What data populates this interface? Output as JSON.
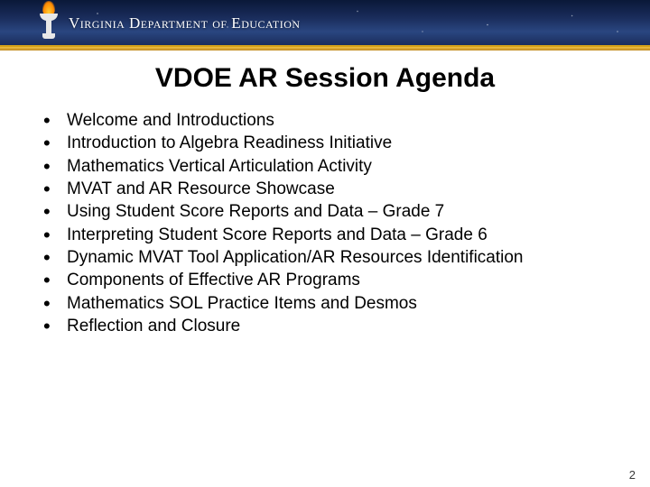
{
  "header": {
    "logo_text": "Virginia Department of Education",
    "bar_gradient": [
      "#0a1838",
      "#1a2d5c",
      "#2a4680"
    ],
    "gold_stripe": [
      "#f0c040",
      "#c08820"
    ],
    "torch_flame_colors": [
      "#ffcc33",
      "#ff8800"
    ],
    "torch_body_color": "#e8e8e8"
  },
  "slide": {
    "title": "VDOE AR Session Agenda",
    "title_fontsize": 30,
    "title_color": "#000000",
    "bullet_fontsize": 19,
    "bullet_color": "#000000",
    "items": [
      "Welcome and Introductions",
      "Introduction to Algebra Readiness Initiative",
      "Mathematics Vertical Articulation Activity",
      "MVAT and AR Resource Showcase",
      "Using Student Score Reports and Data – Grade 7",
      "Interpreting Student Score Reports and Data – Grade 6",
      "Dynamic MVAT Tool Application/AR Resources Identification",
      "Components of Effective AR Programs",
      "Mathematics SOL Practice Items and Desmos",
      "Reflection and Closure"
    ],
    "page_number": "2",
    "background_color": "#ffffff"
  }
}
